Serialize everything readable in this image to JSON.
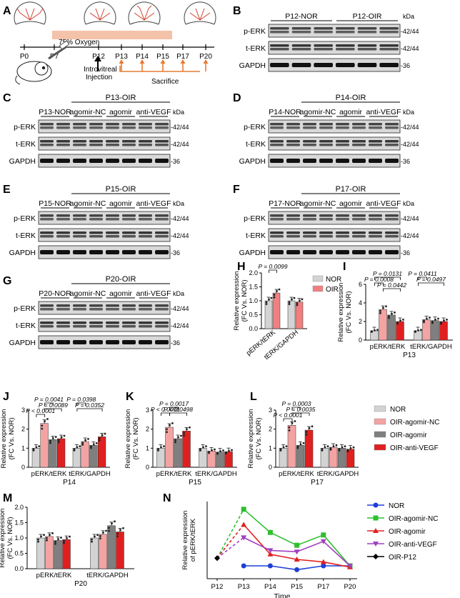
{
  "panel_letters": [
    "A",
    "B",
    "C",
    "D",
    "E",
    "F",
    "G",
    "H",
    "I",
    "J",
    "K",
    "L",
    "M",
    "N"
  ],
  "schematic": {
    "oxygen": "75% Oxygen",
    "ticks": [
      "P0",
      "P7",
      "P12",
      "P13",
      "P14",
      "P15",
      "P17",
      "P20"
    ],
    "injection": "Introvitreal\nInjection",
    "sacrifice": "Sacrifice"
  },
  "units": {
    "kda": "kDa"
  },
  "blot_labels": {
    "perk": "p-ERK",
    "terk": "t-ERK",
    "gapdh": "GAPDH",
    "mw_erk": "42/44",
    "mw_gapdh": "36"
  },
  "blot_B": {
    "groups": [
      "P12-NOR",
      "P12-OIR"
    ]
  },
  "blot_C": {
    "header": "P13-OIR",
    "groups": [
      "P13-NOR",
      "agomir-NC",
      "agomir",
      "anti-VEGF"
    ]
  },
  "blot_D": {
    "header": "P14-OIR",
    "groups": [
      "P14-NOR",
      "agomir-NC",
      "agomir",
      "anti-VEGF"
    ]
  },
  "blot_E": {
    "header": "P15-OIR",
    "groups": [
      "P15-NOR",
      "agomir-NC",
      "agomir",
      "anti-VEGF"
    ]
  },
  "blot_F": {
    "header": "P17-OIR",
    "groups": [
      "P17-NOR",
      "agomir-NC",
      "agomir",
      "anti-VEGF"
    ]
  },
  "blot_G": {
    "header": "P20-OIR",
    "groups": [
      "P20-NOR",
      "agomir-NC",
      "agomir",
      "anti-VEGF"
    ]
  },
  "legends": {
    "H": [
      "NOR",
      "OIR"
    ],
    "four": [
      "NOR",
      "OIR-agomir-NC",
      "OIR-agomir",
      "OIR-anti-VEGF"
    ]
  },
  "colors": {
    "NOR": "#d3d3d3",
    "OIR": "#f08080",
    "agomir_nc": "#f4a3a3",
    "agomir": "#7f7f7f",
    "anti_vegf": "#e02020"
  },
  "chart_data": [
    {
      "panel": "H",
      "type": "bar",
      "ylabel": "Relative expression\n(FC Vs. NOR)",
      "ylim": [
        0,
        2.0
      ],
      "yticks": [
        "0.0",
        "0.5",
        "1.0",
        "1.5",
        "2.0"
      ],
      "categories": [
        "pERK/tERK",
        "tERK/GAPDH"
      ],
      "series": [
        {
          "name": "NOR",
          "values": [
            1.0,
            1.0
          ]
        },
        {
          "name": "OIR",
          "values": [
            1.28,
            0.96
          ]
        }
      ],
      "annotations": [
        "P = 0.0099"
      ]
    },
    {
      "panel": "I",
      "type": "bar",
      "ylabel": "Relative expression\n(FC Vs. NOR)",
      "ylim": [
        0,
        6
      ],
      "yticks": [
        "0",
        "2",
        "4",
        "6"
      ],
      "categories": [
        "pERK/tERK",
        "tERK/GAPDH"
      ],
      "xlabel": "P13",
      "series": [
        {
          "name": "NOR",
          "values": [
            1.0,
            1.0
          ]
        },
        {
          "name": "OIR-agomir-NC",
          "values": [
            3.3,
            2.2
          ]
        },
        {
          "name": "OIR-agomir",
          "values": [
            2.7,
            2.1
          ]
        },
        {
          "name": "OIR-anti-VEGF",
          "values": [
            2.0,
            2.0
          ]
        }
      ],
      "annotations": [
        "P = 0.0131",
        "P = 0.0008",
        "P = 0.0442",
        "P = 0.0497",
        "P = 0.0411"
      ]
    },
    {
      "panel": "J",
      "type": "bar",
      "ylabel": "Relative expression\n(FC Vs. NOR)",
      "ylim": [
        0,
        3
      ],
      "yticks": [
        "0",
        "1",
        "2",
        "3"
      ],
      "categories": [
        "pERK/tERK",
        "tERK/GAPDH"
      ],
      "xlabel": "P14",
      "series": [
        {
          "name": "NOR",
          "values": [
            1.0,
            1.0
          ]
        },
        {
          "name": "OIR-agomir-NC",
          "values": [
            2.3,
            1.35
          ]
        },
        {
          "name": "OIR-agomir",
          "values": [
            1.45,
            1.15
          ]
        },
        {
          "name": "OIR-anti-VEGF",
          "values": [
            1.5,
            1.6
          ]
        }
      ],
      "annotations": [
        "P < 0.0001",
        "P = 0.0089",
        "P = 0.0041",
        "P = 0.0352",
        "P = 0.0398"
      ]
    },
    {
      "panel": "K",
      "type": "bar",
      "ylabel": "Relative expression\n(FC Vs. NOR)",
      "ylim": [
        0,
        3
      ],
      "yticks": [
        "0",
        "1",
        "2",
        "3"
      ],
      "categories": [
        "pERK/tERK",
        "tERK/GAPDH"
      ],
      "xlabel": "P15",
      "series": [
        {
          "name": "NOR",
          "values": [
            1.0,
            1.0
          ]
        },
        {
          "name": "OIR-agomir-NC",
          "values": [
            2.1,
            0.85
          ]
        },
        {
          "name": "OIR-agomir",
          "values": [
            1.5,
            0.8
          ]
        },
        {
          "name": "OIR-anti-VEGF",
          "values": [
            1.9,
            0.82
          ]
        }
      ],
      "annotations": [
        "P < 0.0001",
        "P = 0.0498",
        "P = 0.0017"
      ]
    },
    {
      "panel": "L",
      "type": "bar",
      "ylabel": "Relative expression\n(FC Vs. NOR)",
      "ylim": [
        0,
        3
      ],
      "yticks": [
        "0",
        "1",
        "2",
        "3"
      ],
      "categories": [
        "pERK/tERK",
        "tERK/GAPDH"
      ],
      "xlabel": "P17",
      "series": [
        {
          "name": "NOR",
          "values": [
            1.0,
            1.0
          ]
        },
        {
          "name": "OIR-agomir-NC",
          "values": [
            2.2,
            1.05
          ]
        },
        {
          "name": "OIR-agomir",
          "values": [
            1.15,
            1.0
          ]
        },
        {
          "name": "OIR-anti-VEGF",
          "values": [
            1.95,
            0.95
          ]
        }
      ],
      "annotations": [
        "P < 0.0001",
        "P = 0.0035",
        "P = 0.0003"
      ]
    },
    {
      "panel": "M",
      "type": "bar",
      "ylabel": "Relative expression\n(FC Vs. NOR)",
      "ylim": [
        0,
        2.0
      ],
      "yticks": [
        "0.0",
        "0.5",
        "1.0",
        "1.5",
        "2.0"
      ],
      "categories": [
        "pERK/tERK",
        "tERK/GAPDH"
      ],
      "xlabel": "P20",
      "series": [
        {
          "name": "NOR",
          "values": [
            1.0,
            1.0
          ]
        },
        {
          "name": "OIR-agomir-NC",
          "values": [
            1.05,
            1.12
          ]
        },
        {
          "name": "OIR-agomir",
          "values": [
            0.92,
            1.4
          ]
        },
        {
          "name": "OIR-anti-VEGF",
          "values": [
            0.95,
            1.2
          ]
        }
      ]
    },
    {
      "panel": "N",
      "type": "line",
      "xlabel": "Time",
      "ylabel": "Relative expression\nof pERK/tERK",
      "x": [
        "P12",
        "P13",
        "P14",
        "P15",
        "P17",
        "P20"
      ],
      "series": [
        {
          "name": "NOR",
          "color": "#1f3fd8",
          "values": [
            null,
            1.0,
            1.0,
            0.85,
            1.0,
            1.0
          ]
        },
        {
          "name": "OIR-agomir-NC",
          "color": "#2fbf2f",
          "values": [
            null,
            3.2,
            2.3,
            1.8,
            2.2,
            1.0
          ]
        },
        {
          "name": "OIR-agomir",
          "color": "#e02020",
          "values": [
            null,
            2.6,
            1.45,
            1.25,
            1.15,
            0.95
          ]
        },
        {
          "name": "OIR-anti-VEGF",
          "color": "#a040c0",
          "values": [
            null,
            2.1,
            1.6,
            1.55,
            1.95,
            1.0
          ]
        },
        {
          "name": "OIR-P12",
          "color": "#000000",
          "values": [
            1.3,
            null,
            null,
            null,
            null,
            null
          ]
        }
      ]
    }
  ]
}
